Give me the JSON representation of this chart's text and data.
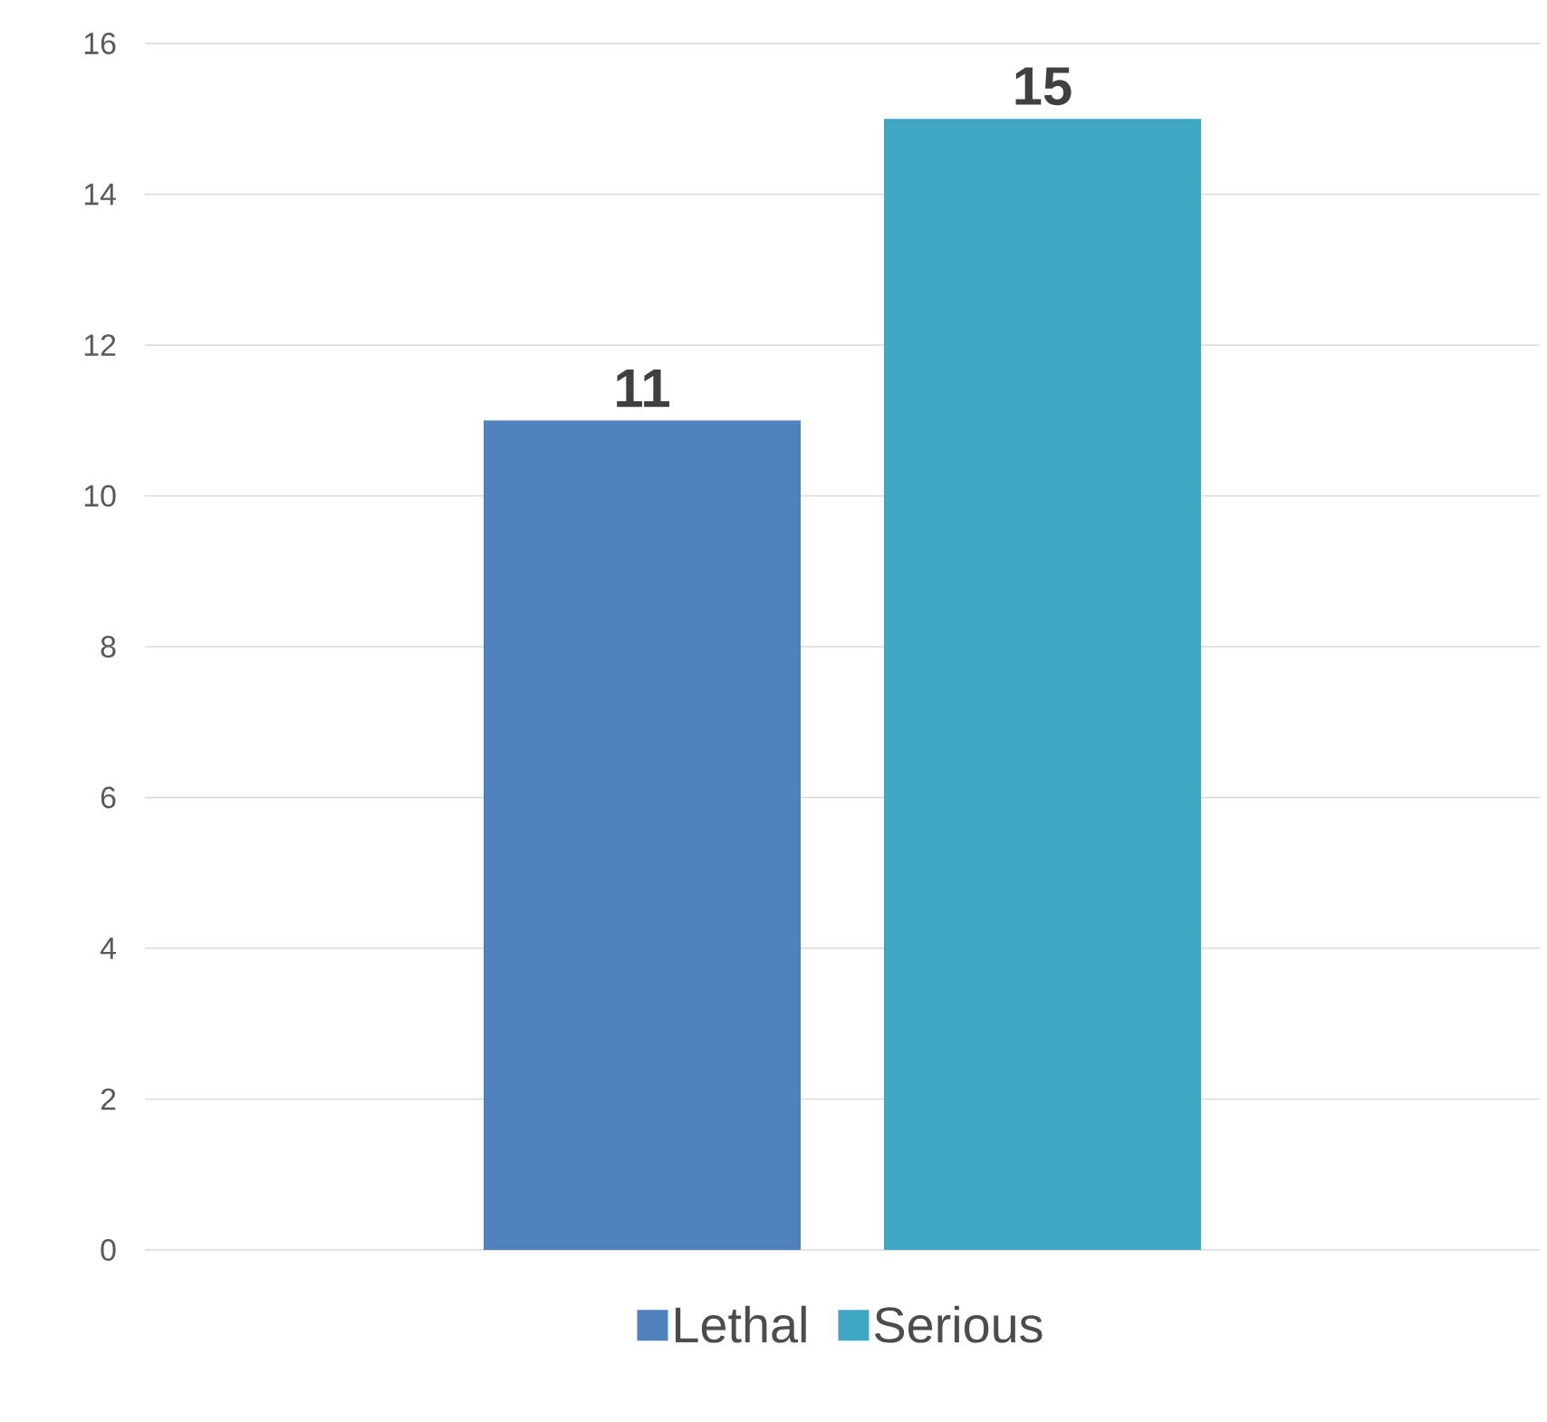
{
  "chart_data": {
    "type": "bar",
    "categories": [
      null
    ],
    "series": [
      {
        "name": "Lethal",
        "color": "#4f81bd",
        "values": [
          11
        ]
      },
      {
        "name": "Serious",
        "color": "#3fa7c4",
        "values": [
          15
        ]
      }
    ],
    "ylim": [
      0,
      16
    ],
    "yticks": [
      0,
      2,
      4,
      6,
      8,
      10,
      12,
      14,
      16
    ],
    "grid": "y",
    "legend": "bottom",
    "data_labels": true
  }
}
